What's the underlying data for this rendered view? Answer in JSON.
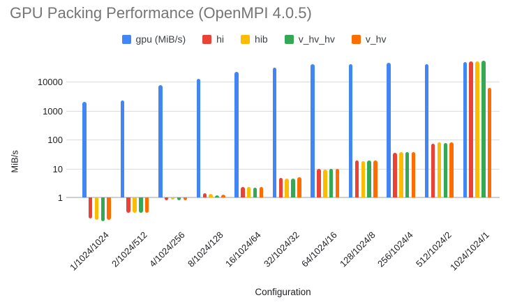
{
  "title": "GPU Packing Performance (OpenMPI 4.0.5)",
  "chart_data": {
    "type": "bar",
    "title": "GPU Packing Performance (OpenMPI 4.0.5)",
    "xlabel": "Configuration",
    "ylabel": "MiB/s",
    "y_scale": "log",
    "y_ticks": [
      1,
      10,
      100,
      1000,
      10000
    ],
    "ylim": [
      0.13,
      60000
    ],
    "grid": "horizontal",
    "legend_position": "top",
    "categories": [
      "1/1024/1024",
      "2/1024/512",
      "4/1024/256",
      "8/1024/128",
      "16/1024/64",
      "32/1024/32",
      "64/1024/16",
      "128/1024/8",
      "256/1024/4",
      "512/1024/2",
      "1024/1024/1"
    ],
    "series": [
      {
        "name": "gpu (MiB/s)",
        "color": "#4285F4",
        "values": [
          2000,
          2300,
          7600,
          12500,
          22000,
          31000,
          40000,
          42000,
          45000,
          40000,
          48000
        ]
      },
      {
        "name": "hi",
        "color": "#EA4335",
        "values": [
          0.19,
          0.3,
          0.8,
          1.4,
          2.3,
          4.8,
          10,
          19,
          36,
          73,
          52000
        ]
      },
      {
        "name": "hib",
        "color": "#FBBC04",
        "values": [
          0.17,
          0.3,
          0.85,
          1.3,
          2.3,
          4.5,
          9.5,
          18.5,
          38,
          80,
          50000
        ]
      },
      {
        "name": "v_hv_hv",
        "color": "#34A853",
        "values": [
          0.15,
          0.3,
          0.8,
          1.2,
          2.2,
          4.5,
          10,
          19,
          38,
          76,
          54000
        ]
      },
      {
        "name": "v_hv",
        "color": "#FF6D01",
        "values": [
          0.17,
          0.3,
          0.8,
          1.25,
          2.3,
          5.0,
          10,
          19,
          38,
          80,
          6300
        ]
      }
    ]
  }
}
